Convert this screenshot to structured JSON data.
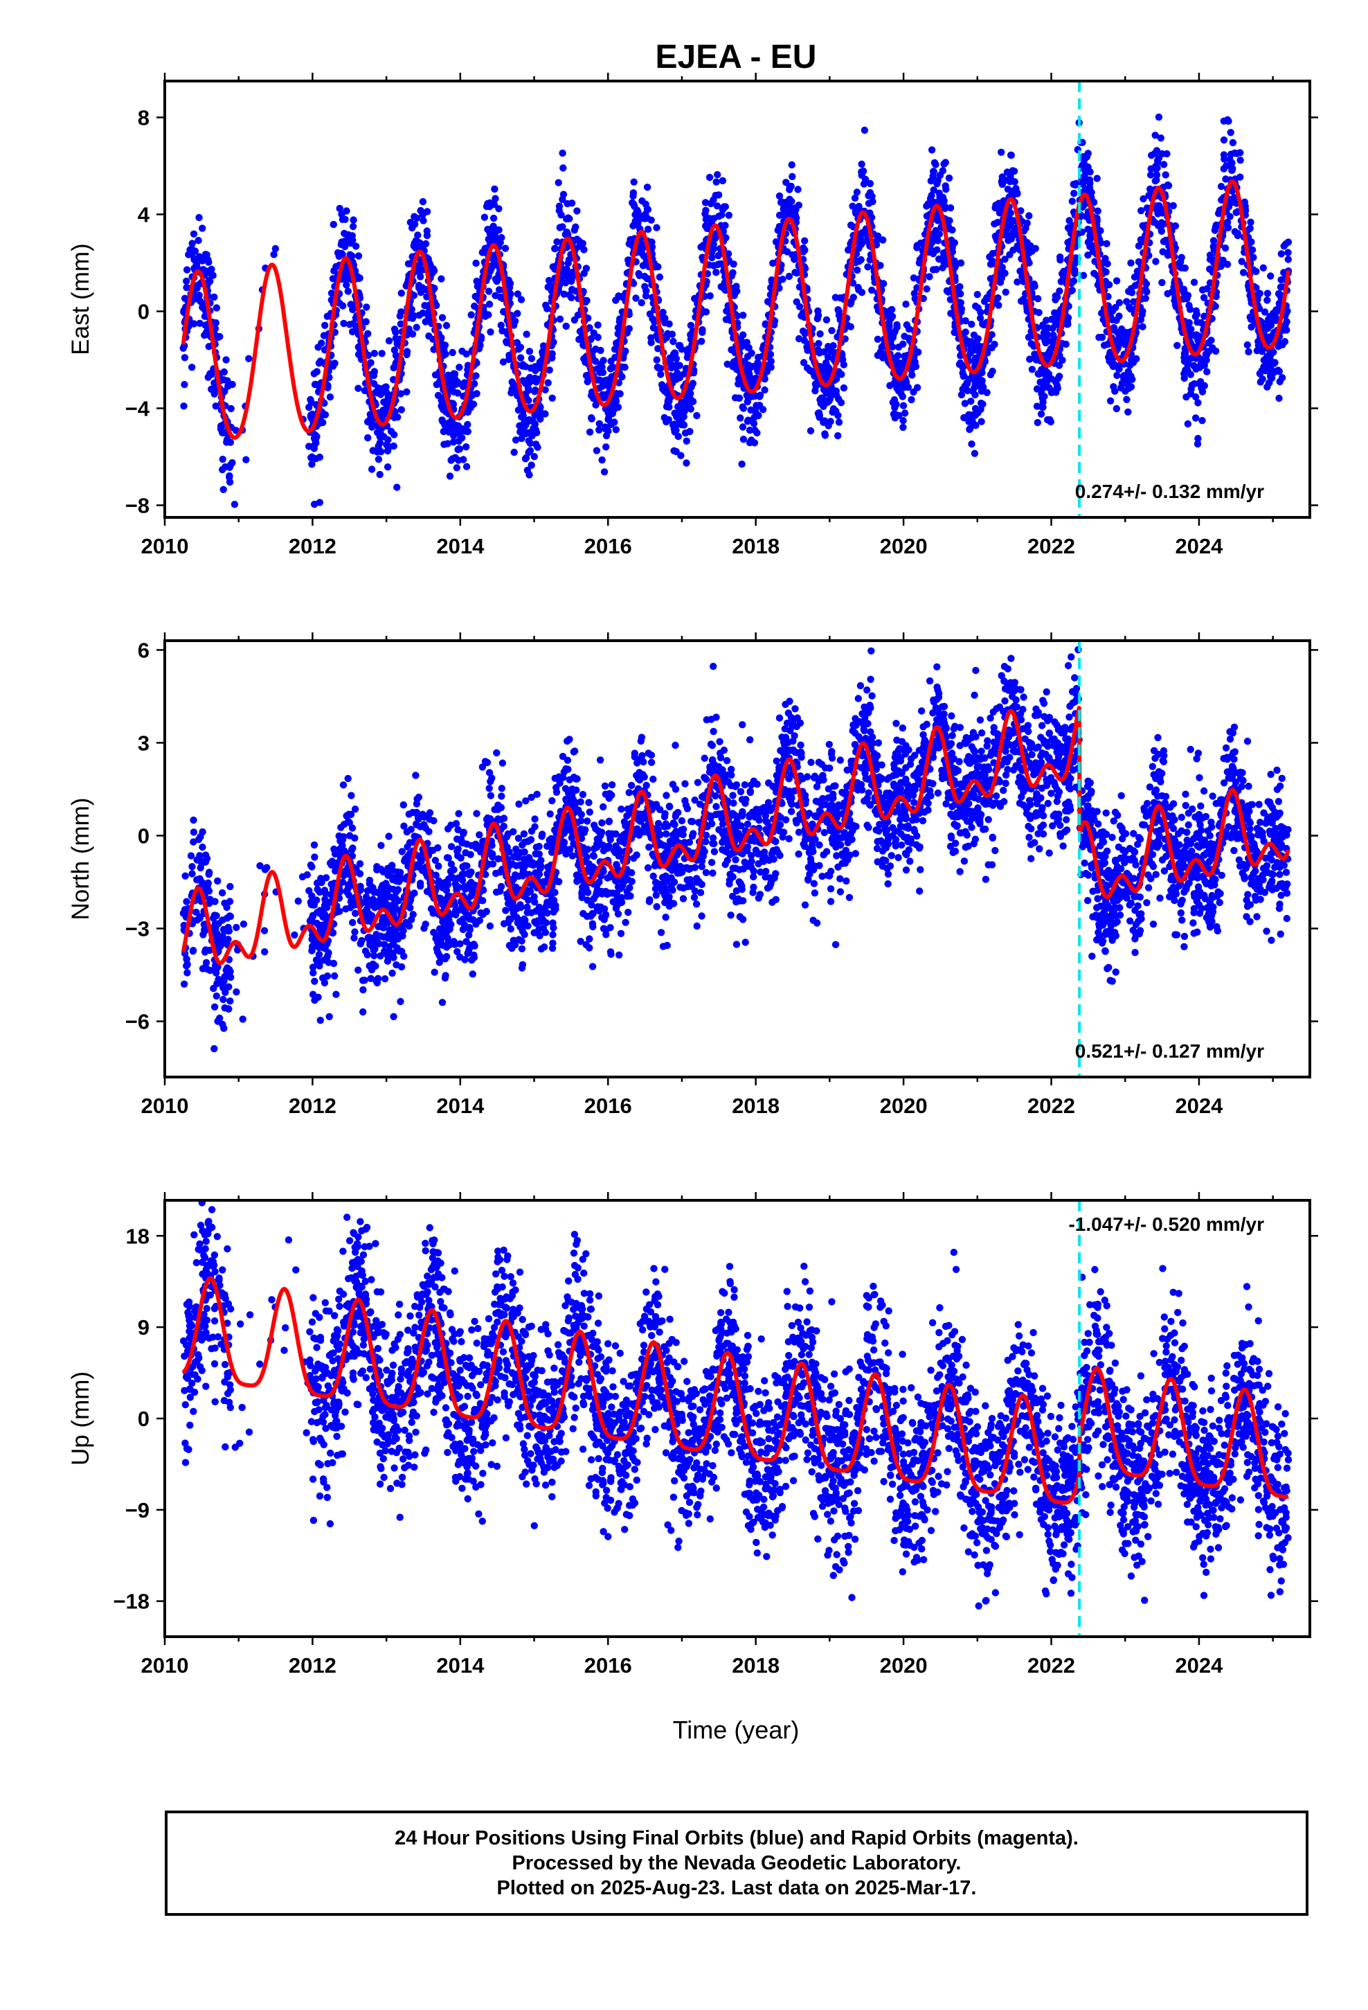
{
  "title": "EJEA - EU",
  "xlabel": "Time (year)",
  "footer": {
    "line1": "24 Hour Positions Using Final Orbits (blue) and Rapid Orbits (magenta).",
    "line2": "Processed by the Nevada Geodetic Laboratory.",
    "line3": "Plotted on 2025-Aug-23. Last data on 2025-Mar-17."
  },
  "colors": {
    "data": "#0000ff",
    "model": "#ff0000",
    "event": "#00e5ee"
  },
  "chart_data": [
    {
      "type": "scatter",
      "panel": "east",
      "ylabel": "East (mm)",
      "xlim": [
        2010.0,
        2025.5
      ],
      "ylim": [
        -8.5,
        9.5
      ],
      "xticks": [
        2010,
        2012,
        2014,
        2016,
        2018,
        2020,
        2022,
        2024
      ],
      "yticks": [
        -8,
        -4,
        0,
        4,
        8
      ],
      "ytick_labels": [
        "−8",
        "−4",
        "0",
        "4",
        "8"
      ],
      "event_line_x": 2022.38,
      "rate_label": "0.274+/- 0.132 mm/yr",
      "rate_position": "bottom-right",
      "data_span": [
        2010.25,
        2025.21
      ],
      "data_gap": [
        2010.9,
        2011.95
      ],
      "model": {
        "annual_amplitude": 3.5,
        "annual_phase_year": 0.45,
        "semiannual_amplitude": 0.3,
        "offset_before_event": -2.2,
        "offset_after_event": 1.0,
        "trend_mm_per_yr": 0.27,
        "model_start": 2010.25,
        "model_end": 2025.21
      },
      "series": [
        {
          "name": "Final Orbits (blue)",
          "approx_points": 4500,
          "scatter_mm": 1.2
        }
      ]
    },
    {
      "type": "scatter",
      "panel": "north",
      "ylabel": "North (mm)",
      "xlim": [
        2010.0,
        2025.5
      ],
      "ylim": [
        -7.8,
        6.3
      ],
      "xticks": [
        2010,
        2012,
        2014,
        2016,
        2018,
        2020,
        2022,
        2024
      ],
      "yticks": [
        -6,
        -3,
        0,
        3,
        6
      ],
      "ytick_labels": [
        "−6",
        "−3",
        "0",
        "3",
        "6"
      ],
      "event_line_x": 2022.38,
      "rate_label": "0.521+/- 0.127 mm/yr",
      "rate_position": "bottom-right",
      "data_span": [
        2010.25,
        2025.21
      ],
      "data_gap": [
        2010.9,
        2011.95
      ],
      "model": {
        "annual_amplitude": 1.0,
        "annual_phase_year": 0.45,
        "semiannual_amplitude": 0.7,
        "offset_before_event": -3.5,
        "offset_after_event": -1.3,
        "trend_mm_per_yr": 0.52,
        "model_start": 2010.25,
        "model_end": 2025.21
      },
      "series": [
        {
          "name": "Final Orbits (blue)",
          "approx_points": 4500,
          "scatter_mm": 1.1
        }
      ]
    },
    {
      "type": "scatter",
      "panel": "up",
      "ylabel": "Up (mm)",
      "xlim": [
        2010.0,
        2025.5
      ],
      "ylim": [
        -21.5,
        21.5
      ],
      "xticks": [
        2010,
        2012,
        2014,
        2016,
        2018,
        2020,
        2022,
        2024
      ],
      "yticks": [
        -18,
        -9,
        0,
        9,
        18
      ],
      "ytick_labels": [
        "−18",
        "−9",
        "0",
        "9",
        "18"
      ],
      "event_line_x": 2022.38,
      "rate_label": "-1.047+/- 0.520 mm/yr",
      "rate_position": "top-right",
      "data_span": [
        2010.25,
        2025.21
      ],
      "data_gap": [
        2010.9,
        2011.95
      ],
      "model": {
        "annual_amplitude": 5.0,
        "annual_phase_year": 0.62,
        "semiannual_amplitude": 1.2,
        "offset_before_event": 8.0,
        "offset_after_event": -1.0,
        "trend_mm_per_yr": -1.05,
        "model_start": 2010.25,
        "model_end": 2025.21
      },
      "series": [
        {
          "name": "Final Orbits (blue)",
          "approx_points": 4500,
          "scatter_mm": 4.2
        }
      ]
    }
  ]
}
